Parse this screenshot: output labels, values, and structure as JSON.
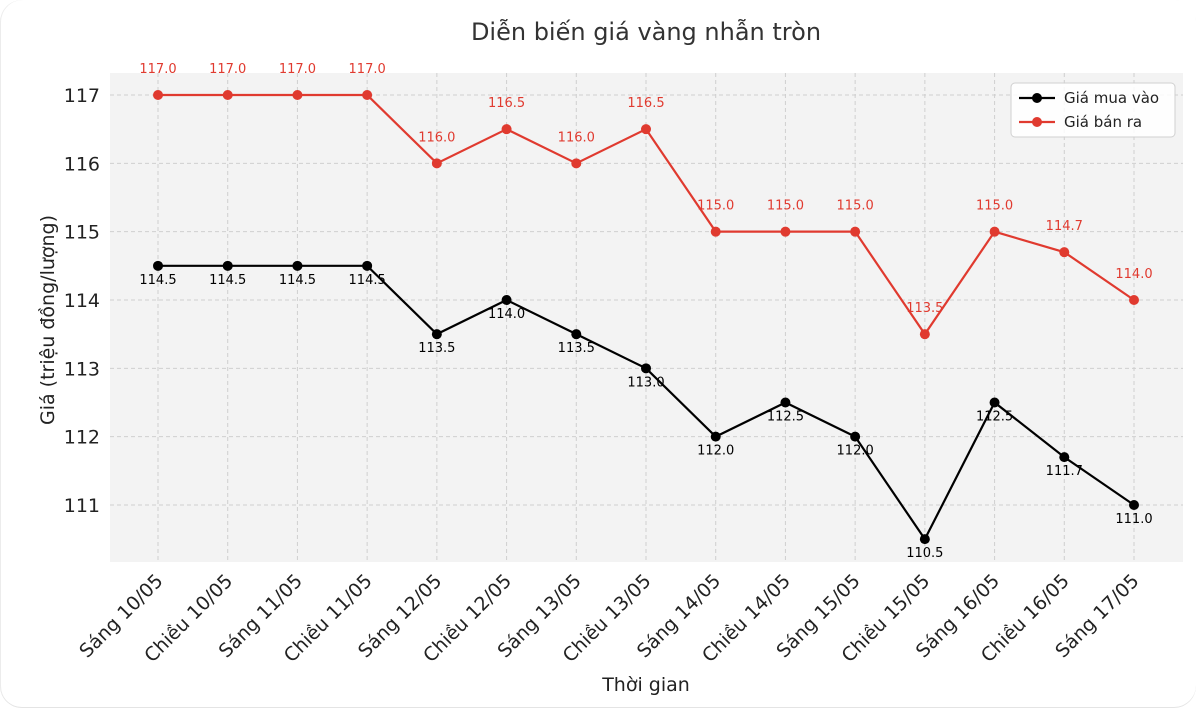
{
  "chart_data": {
    "type": "line",
    "title": "Diễn biến giá vàng nhẫn tròn",
    "xlabel": "Thời gian",
    "ylabel": "Giá (triệu đồng/lượng)",
    "categories": [
      "Sáng 10/05",
      "Chiều 10/05",
      "Sáng 11/05",
      "Chiều 11/05",
      "Sáng 12/05",
      "Chiều 12/05",
      "Sáng 13/05",
      "Chiều 13/05",
      "Sáng 14/05",
      "Chiều 14/05",
      "Sáng 15/05",
      "Chiều 15/05",
      "Sáng 16/05",
      "Chiều 16/05",
      "Sáng 17/05"
    ],
    "yticks": [
      111,
      112,
      113,
      114,
      115,
      116,
      117
    ],
    "ylim": [
      110.2,
      117.5
    ],
    "grid": true,
    "legend_position": "top-right",
    "series": [
      {
        "name": "Giá mua vào",
        "color": "#000000",
        "values": [
          114.5,
          114.5,
          114.5,
          114.5,
          113.5,
          114.0,
          113.5,
          113.0,
          112.0,
          112.5,
          112.0,
          110.5,
          112.5,
          111.7,
          111.0
        ],
        "labels": [
          "114.5",
          "114.5",
          "114.5",
          "114.5",
          "113.5",
          "114.0",
          "113.5",
          "113.0",
          "112.0",
          "112.5",
          "112.0",
          "110.5",
          "112.5",
          "111.7",
          "111.0"
        ]
      },
      {
        "name": "Giá bán ra",
        "color": "#e03a2f",
        "values": [
          117.0,
          117.0,
          117.0,
          117.0,
          116.0,
          116.5,
          116.0,
          116.5,
          115.0,
          115.0,
          115.0,
          113.5,
          115.0,
          114.7,
          114.0
        ],
        "labels": [
          "117.0",
          "117.0",
          "117.0",
          "117.0",
          "116.0",
          "116.5",
          "116.0",
          "116.5",
          "115.0",
          "115.0",
          "115.0",
          "113.5",
          "115.0",
          "114.7",
          "114.0"
        ]
      }
    ]
  }
}
